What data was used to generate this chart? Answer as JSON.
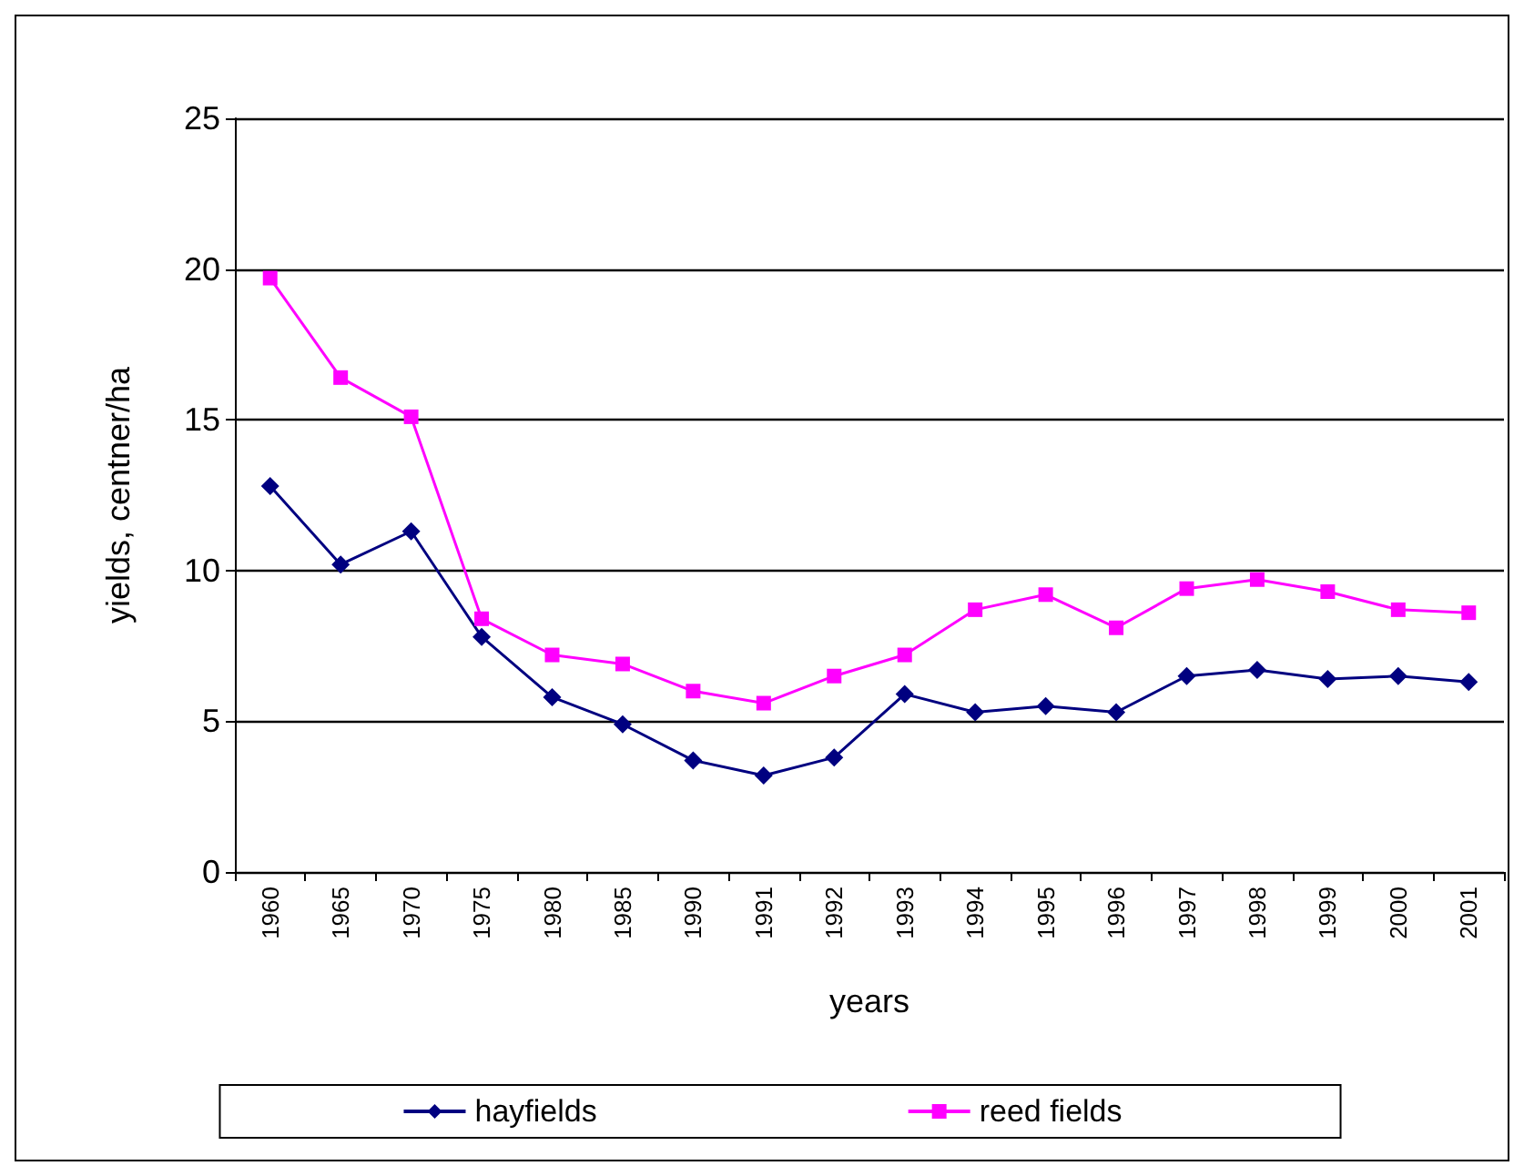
{
  "chart_data": {
    "type": "line",
    "xlabel": "years",
    "ylabel": "yields, centner/ha",
    "categories": [
      "1960",
      "1965",
      "1970",
      "1975",
      "1980",
      "1985",
      "1990",
      "1991",
      "1992",
      "1993",
      "1994",
      "1995",
      "1996",
      "1997",
      "1998",
      "1999",
      "2000",
      "2001"
    ],
    "series": [
      {
        "name": "hayfields",
        "color": "#000080",
        "marker": "diamond",
        "values": [
          12.8,
          10.2,
          11.3,
          7.8,
          5.8,
          4.9,
          3.7,
          3.2,
          3.8,
          5.9,
          5.3,
          5.5,
          5.3,
          6.5,
          6.7,
          6.4,
          6.5,
          6.3
        ]
      },
      {
        "name": "reed fields",
        "color": "#ff00ff",
        "marker": "square",
        "values": [
          19.7,
          16.4,
          15.1,
          8.4,
          7.2,
          6.9,
          6.0,
          5.6,
          6.5,
          7.2,
          8.7,
          9.2,
          8.1,
          9.4,
          9.7,
          9.3,
          8.7,
          8.6
        ]
      }
    ],
    "ylim": [
      0,
      25
    ],
    "yticks": [
      0,
      5,
      10,
      15,
      20,
      25
    ],
    "grid": "y",
    "legend": "bottom",
    "line_style": "solid"
  }
}
